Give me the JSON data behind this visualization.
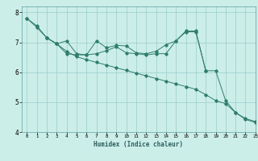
{
  "title": "",
  "xlabel": "Humidex (Indice chaleur)",
  "ylabel": "",
  "bg_color": "#cceee8",
  "grid_color": "#99cccc",
  "line_color": "#2e7d6e",
  "xlim": [
    -0.5,
    23
  ],
  "ylim": [
    4,
    8.2
  ],
  "xticks": [
    0,
    1,
    2,
    3,
    4,
    5,
    6,
    7,
    8,
    9,
    10,
    11,
    12,
    13,
    14,
    15,
    16,
    17,
    18,
    19,
    20,
    21,
    22,
    23
  ],
  "yticks": [
    4,
    5,
    6,
    7,
    8
  ],
  "line1_x": [
    0,
    1,
    2,
    3,
    4,
    5,
    6,
    7,
    8,
    9,
    10,
    11,
    12,
    13,
    14,
    15,
    16,
    17,
    18,
    19,
    20,
    21,
    22,
    23
  ],
  "line1_y": [
    7.8,
    7.5,
    7.15,
    6.95,
    6.62,
    6.58,
    6.58,
    6.62,
    6.72,
    6.85,
    6.65,
    6.62,
    6.58,
    6.62,
    6.62,
    7.05,
    7.38,
    7.38,
    6.05,
    6.05,
    5.05,
    4.65,
    4.45,
    4.35
  ],
  "line2_x": [
    2,
    3,
    4,
    5,
    6,
    7,
    8,
    9,
    10,
    11,
    12,
    13,
    14,
    15,
    16,
    17,
    18
  ],
  "line2_y": [
    7.15,
    6.95,
    7.05,
    6.62,
    6.58,
    7.05,
    6.82,
    6.9,
    6.88,
    6.65,
    6.62,
    6.7,
    6.92,
    7.05,
    7.35,
    7.35,
    6.05
  ],
  "line3_x": [
    0,
    1,
    2,
    3,
    4,
    5,
    6,
    7,
    8,
    9,
    10,
    11,
    12,
    13,
    14,
    15,
    16,
    17,
    18,
    19,
    20,
    21,
    22,
    23
  ],
  "line3_y": [
    7.8,
    7.55,
    7.15,
    6.95,
    6.7,
    6.52,
    6.42,
    6.33,
    6.24,
    6.15,
    6.06,
    5.97,
    5.88,
    5.79,
    5.7,
    5.61,
    5.52,
    5.43,
    5.25,
    5.05,
    4.95,
    4.65,
    4.42,
    4.32
  ]
}
